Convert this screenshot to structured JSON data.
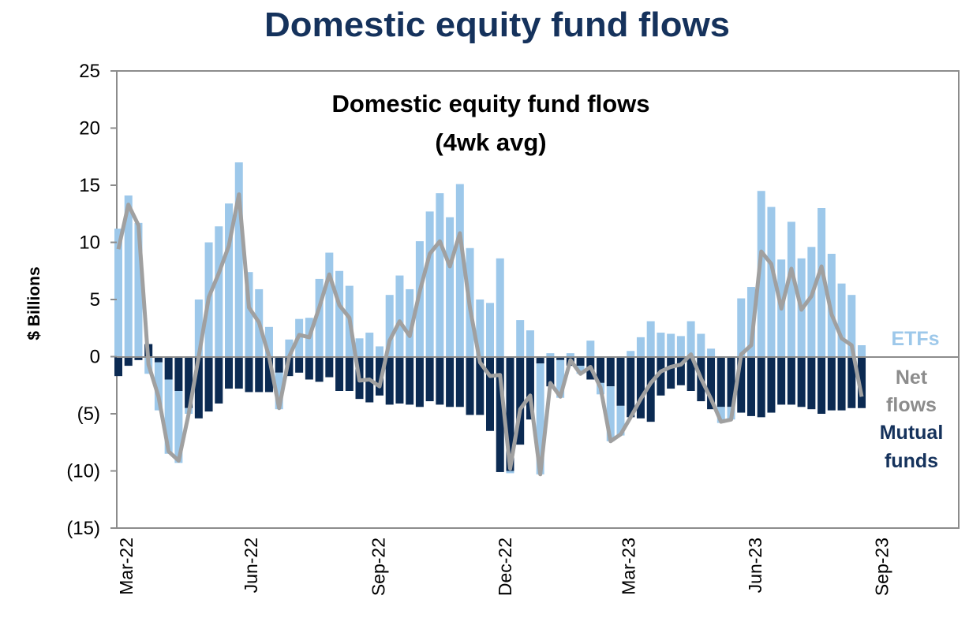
{
  "chart_data": {
    "type": "bar",
    "title": "Domestic equity fund flows",
    "subtitle_lines": [
      "Domestic equity fund flows",
      "(4wk avg)"
    ],
    "xlabel": "",
    "ylabel": "$ Billions",
    "ylim": [
      -15,
      25
    ],
    "yticks": [
      25,
      20,
      15,
      10,
      5,
      0,
      -5,
      -10,
      -15
    ],
    "ytick_labels": [
      "25",
      "20",
      "15",
      "10",
      "5",
      "0",
      "(5)",
      "(10)",
      "(15)"
    ],
    "xtick_labels": [
      "Mar-22",
      "Jun-22",
      "Sep-22",
      "Dec-22",
      "Mar-23",
      "Jun-23",
      "Sep-23"
    ],
    "frequency": "weekly",
    "stacked": true,
    "grid": false,
    "legend_placement": "right, inside plot",
    "colors": {
      "etf": "#9dc8ea",
      "mutual": "#0b2a52",
      "net": "#a0a0a0",
      "title": "#15325c",
      "axis": "#8c8c8c"
    },
    "series": [
      {
        "name": "ETFs",
        "type": "bar",
        "values": [
          11.2,
          14.1,
          11.7,
          -1.5,
          -4.2,
          -6.5,
          -6.3,
          -0.5,
          5.0,
          10.0,
          11.4,
          13.4,
          17.0,
          7.4,
          5.9,
          2.6,
          -3.2,
          1.5,
          3.3,
          3.4,
          6.8,
          9.1,
          7.5,
          6.2,
          1.6,
          2.1,
          0.9,
          5.4,
          7.1,
          5.9,
          10.1,
          12.7,
          14.3,
          12.2,
          15.1,
          9.5,
          5.0,
          4.7,
          8.6,
          -0.2,
          3.2,
          2.3,
          -9.7,
          0.3,
          -3.3,
          0.3,
          -0.7,
          1.4,
          -1.0,
          -4.8,
          -2.6,
          0.5,
          1.7,
          3.1,
          2.1,
          2.0,
          1.8,
          3.1,
          2.0,
          0.7,
          -1.4,
          -1.1,
          5.1,
          6.1,
          14.5,
          13.1,
          8.5,
          11.8,
          8.6,
          9.6,
          13.0,
          9.0,
          6.4,
          5.4,
          1.0
        ]
      },
      {
        "name": "Mutual funds",
        "type": "bar",
        "values": [
          -1.7,
          -0.8,
          -0.3,
          1.1,
          -0.5,
          -2.0,
          -3.0,
          -4.5,
          -5.4,
          -4.8,
          -4.1,
          -2.8,
          -2.8,
          -3.1,
          -3.1,
          -3.1,
          -1.4,
          -1.7,
          -1.4,
          -2.0,
          -2.2,
          -1.8,
          -3.0,
          -3.0,
          -3.7,
          -4.0,
          -3.4,
          -4.2,
          -4.1,
          -4.2,
          -4.4,
          -3.9,
          -4.2,
          -4.4,
          -4.4,
          -5.1,
          -5.1,
          -6.5,
          -10.1,
          -10.0,
          -7.7,
          -5.5,
          -0.6,
          -2.6,
          -0.3,
          -0.8,
          -0.8,
          -2.0,
          -2.3,
          -2.6,
          -4.3,
          -5.3,
          -5.4,
          -5.7,
          -3.4,
          -2.8,
          -2.5,
          -3.0,
          -3.9,
          -4.6,
          -4.4,
          -4.4,
          -4.9,
          -5.2,
          -5.3,
          -4.9,
          -4.2,
          -4.2,
          -4.4,
          -4.6,
          -5.0,
          -4.7,
          -4.7,
          -4.5,
          -4.5
        ]
      },
      {
        "name": "Net flows",
        "type": "line",
        "values": [
          9.4,
          13.3,
          11.5,
          -0.7,
          -3.5,
          -8.3,
          -9.1,
          -5.0,
          0.0,
          5.2,
          7.3,
          9.7,
          14.2,
          4.3,
          3.0,
          0.0,
          -4.5,
          0.0,
          1.9,
          1.7,
          4.3,
          7.2,
          4.5,
          3.4,
          -2.1,
          -2.0,
          -2.6,
          1.4,
          3.1,
          1.8,
          5.7,
          9.0,
          10.1,
          7.9,
          10.8,
          4.3,
          -0.5,
          -1.7,
          -1.6,
          -9.8,
          -4.6,
          -3.4,
          -10.3,
          -2.3,
          -3.5,
          -0.3,
          -1.5,
          -0.9,
          -2.7,
          -7.4,
          -6.8,
          -5.3,
          -3.7,
          -2.3,
          -1.3,
          -0.9,
          -0.7,
          0.2,
          -1.9,
          -3.7,
          -5.7,
          -5.5,
          0.2,
          1.0,
          9.2,
          8.1,
          4.2,
          7.7,
          4.1,
          5.3,
          7.9,
          3.7,
          1.6,
          1.0,
          -3.5
        ]
      }
    ],
    "legend": {
      "etf": "ETFs",
      "net_line1": "Net",
      "net_line2": "flows",
      "mutual_line1": "Mutual",
      "mutual_line2": "funds"
    }
  }
}
